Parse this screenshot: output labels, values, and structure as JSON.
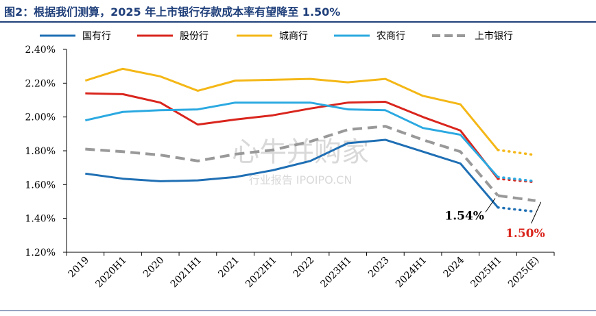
{
  "title": "图2：根据我们测算，2025 年上市银行存款成本率有望降至 1.50%",
  "watermark": {
    "main": "心牛并购家",
    "sub": "行业报告 IPOIPO.CN"
  },
  "chart_data": {
    "type": "line",
    "categories": [
      "2019",
      "2020H1",
      "2020",
      "2021H1",
      "2021",
      "2022H1",
      "2022",
      "2023H1",
      "2023",
      "2024H1",
      "2024",
      "2025H1",
      "2025(E)"
    ],
    "ylim": [
      1.2,
      2.4
    ],
    "yticks": [
      1.2,
      1.4,
      1.6,
      1.8,
      2.0,
      2.2,
      2.4
    ],
    "ytick_labels": [
      "1.20%",
      "1.40%",
      "1.60%",
      "1.80%",
      "2.00%",
      "2.20%",
      "2.40%"
    ],
    "grid": false,
    "legend_position": "top",
    "series": [
      {
        "name": "国有行",
        "color": "#1f6fb4",
        "dashed": false,
        "values": [
          1.665,
          1.635,
          1.62,
          1.625,
          1.645,
          1.685,
          1.74,
          1.845,
          1.865,
          1.795,
          1.725,
          1.465,
          1.44
        ]
      },
      {
        "name": "股份行",
        "color": "#d9251d",
        "dashed": false,
        "values": [
          2.14,
          2.135,
          2.085,
          1.955,
          1.985,
          2.01,
          2.05,
          2.085,
          2.09,
          2.0,
          1.92,
          1.635,
          1.615
        ]
      },
      {
        "name": "城商行",
        "color": "#f4b716",
        "dashed": false,
        "values": [
          2.215,
          2.285,
          2.24,
          2.155,
          2.215,
          2.22,
          2.225,
          2.205,
          2.225,
          2.125,
          2.075,
          1.805,
          1.775
        ]
      },
      {
        "name": "农商行",
        "color": "#2ba9e1",
        "dashed": false,
        "values": [
          1.98,
          2.03,
          2.04,
          2.045,
          2.085,
          2.085,
          2.085,
          2.045,
          2.04,
          1.935,
          1.895,
          1.645,
          1.62
        ]
      },
      {
        "name": "上市银行",
        "color": "#999999",
        "dashed": true,
        "values": [
          1.81,
          1.795,
          1.775,
          1.74,
          1.78,
          1.805,
          1.855,
          1.925,
          1.945,
          1.865,
          1.795,
          1.535,
          1.505
        ]
      }
    ],
    "annotations": [
      {
        "text": "1.54%",
        "color": "#000000",
        "at_index": 11
      },
      {
        "text": "1.50%",
        "color": "#d9251d",
        "at_index": 12
      }
    ]
  }
}
